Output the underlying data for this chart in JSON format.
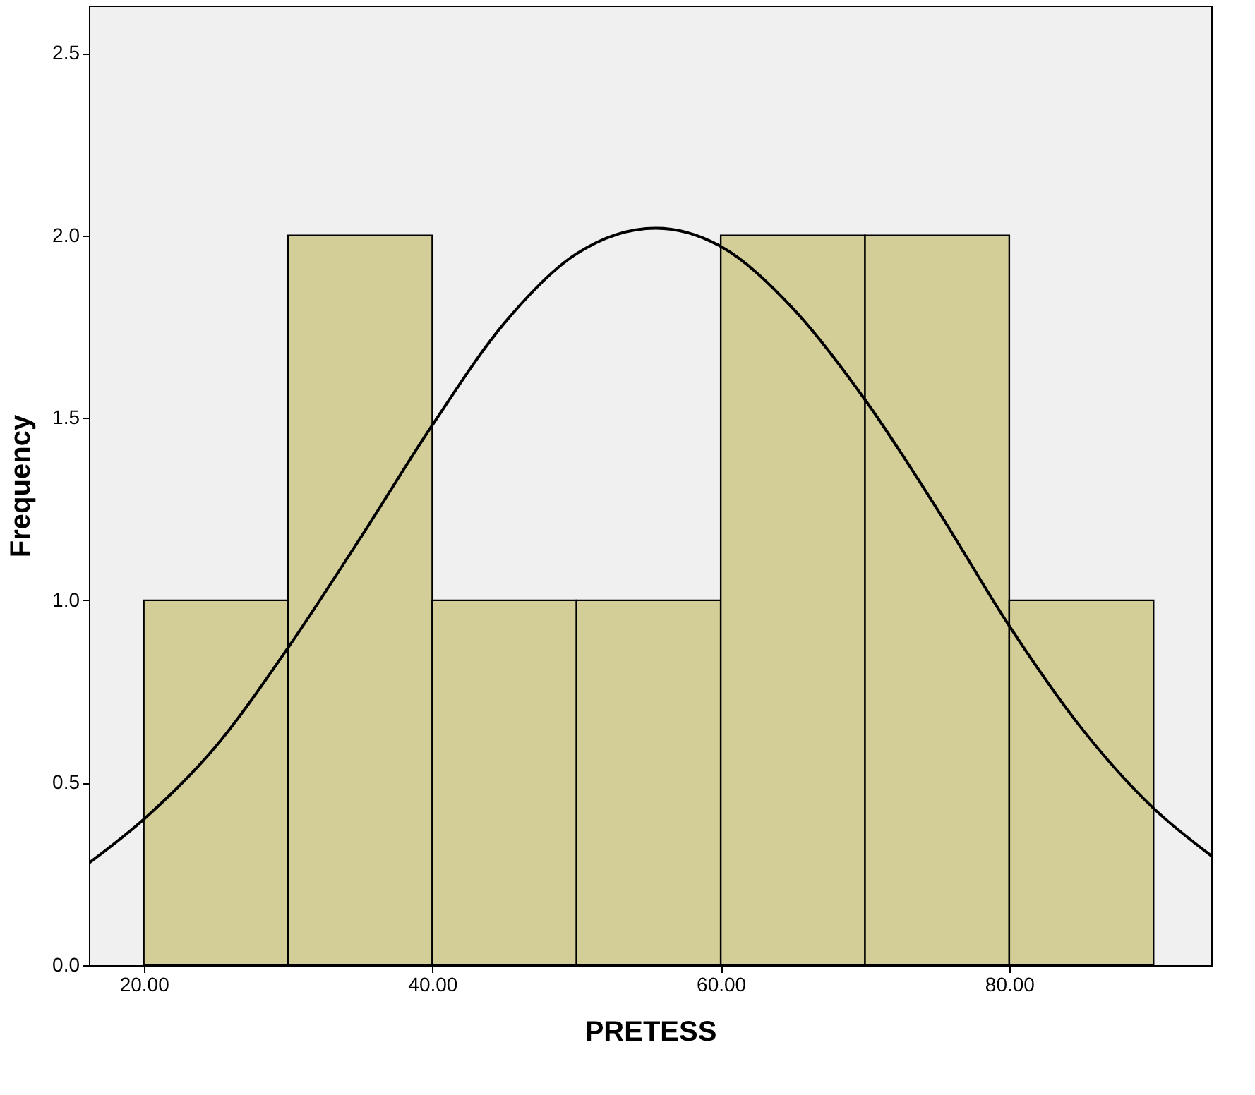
{
  "chart_data": {
    "type": "histogram",
    "xlabel": "PRETESS",
    "ylabel": "Frequency",
    "bins": [
      20,
      30,
      40,
      50,
      60,
      70,
      80,
      90
    ],
    "values": [
      1,
      2,
      1,
      1,
      2,
      2,
      1
    ],
    "color": "#d3ce97",
    "series": [
      {
        "type": "line",
        "color": "#000000",
        "x": [
          16.2,
          20,
          25,
          30,
          35,
          40,
          45,
          50,
          55.5,
          60,
          65,
          70,
          75,
          80,
          85,
          90,
          94
        ],
        "values": [
          0.28,
          0.4,
          0.6,
          0.87,
          1.17,
          1.48,
          1.76,
          1.95,
          2.02,
          1.97,
          1.8,
          1.55,
          1.25,
          0.93,
          0.65,
          0.43,
          0.3
        ]
      }
    ],
    "xlim": [
      16.2,
      94
    ],
    "ylim": [
      0,
      2.63
    ],
    "xticks": [
      {
        "value": 20,
        "label": "20.00"
      },
      {
        "value": 40,
        "label": "40.00"
      },
      {
        "value": 60,
        "label": "60.00"
      },
      {
        "value": 80,
        "label": "80.00"
      }
    ],
    "yticks": [
      {
        "value": 0,
        "label": "0.0"
      },
      {
        "value": 0.5,
        "label": "0.5"
      },
      {
        "value": 1,
        "label": "1.0"
      },
      {
        "value": 1.5,
        "label": "1.5"
      },
      {
        "value": 2,
        "label": "2.0"
      },
      {
        "value": 2.5,
        "label": "2.5"
      }
    ],
    "grid": false
  }
}
